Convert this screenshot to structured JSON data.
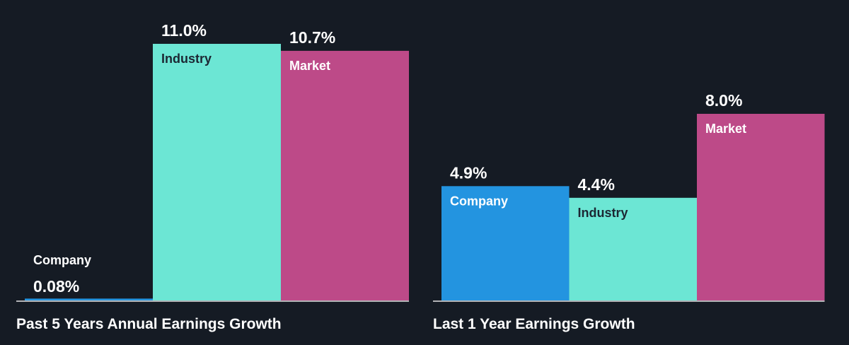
{
  "colors": {
    "background": "#151b24",
    "company": "#2394e0",
    "industry": "#6ce6d4",
    "market": "#bd4a88",
    "baseline": "#e6e6e6",
    "label_light": "#ffffff",
    "label_dark": "#1c2733"
  },
  "chart_data": [
    {
      "type": "bar",
      "title": "Past 5 Years Annual Earnings Growth",
      "categories": [
        "Company",
        "Industry",
        "Market"
      ],
      "values": [
        0.08,
        11.0,
        10.7
      ],
      "value_labels": [
        "0.08%",
        "11.0%",
        "10.7%"
      ],
      "unit": "%",
      "ylim": [
        0,
        11.0
      ],
      "grid": false,
      "legend": "none"
    },
    {
      "type": "bar",
      "title": "Last 1 Year Earnings Growth",
      "categories": [
        "Company",
        "Industry",
        "Market"
      ],
      "values": [
        4.9,
        4.4,
        8.0
      ],
      "value_labels": [
        "4.9%",
        "4.4%",
        "8.0%"
      ],
      "unit": "%",
      "ylim": [
        0,
        11.0
      ],
      "grid": false,
      "legend": "none"
    }
  ]
}
